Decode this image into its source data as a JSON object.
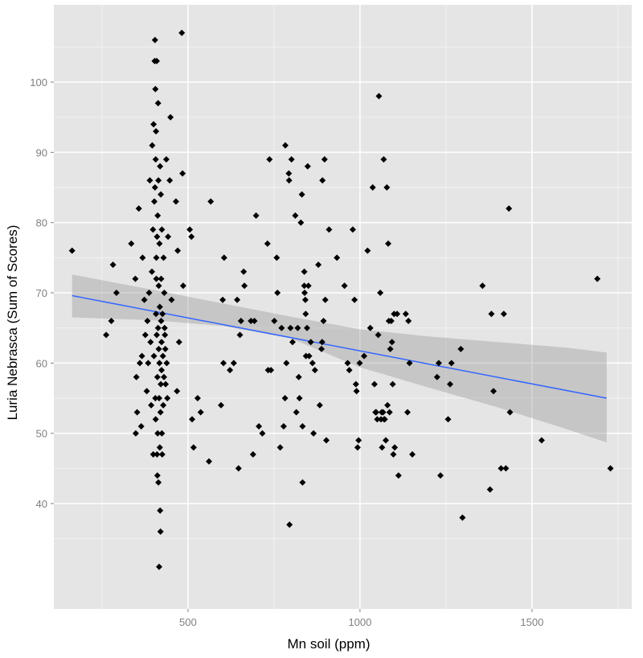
{
  "chart_data": {
    "type": "scatter",
    "title": "",
    "xlabel": "Mn soil (ppm)",
    "ylabel": "Luria Nebrasca (Sum of Scores)",
    "xlim": [
      110,
      1790
    ],
    "ylim": [
      25,
      111
    ],
    "x_ticks": [
      500,
      1000,
      1500
    ],
    "y_ticks": [
      40,
      50,
      60,
      70,
      80,
      90,
      100
    ],
    "x_tick_labels": [
      "500",
      "1000",
      "1500"
    ],
    "y_tick_labels": [
      "40",
      "50",
      "60",
      "70",
      "80",
      "90",
      "100"
    ],
    "grid": true,
    "legend": "none",
    "colors": {
      "panel_bg": "#e5e5e5",
      "grid_major": "#ffffff",
      "grid_minor": "#f2f2f2",
      "points": "#000000",
      "fit_line": "#3366ff",
      "ci_band": "#999999"
    },
    "points": [
      [
        163,
        76
      ],
      [
        262,
        64
      ],
      [
        277,
        66
      ],
      [
        282,
        74
      ],
      [
        292,
        70
      ],
      [
        335,
        77
      ],
      [
        347,
        72
      ],
      [
        352,
        53
      ],
      [
        348,
        50
      ],
      [
        357,
        82
      ],
      [
        350,
        58
      ],
      [
        360,
        60
      ],
      [
        364,
        51
      ],
      [
        368,
        75
      ],
      [
        366,
        61
      ],
      [
        373,
        69
      ],
      [
        376,
        64
      ],
      [
        380,
        56
      ],
      [
        382,
        66
      ],
      [
        384,
        60
      ],
      [
        387,
        70
      ],
      [
        389,
        86
      ],
      [
        391,
        63
      ],
      [
        393,
        54
      ],
      [
        395,
        73
      ],
      [
        396,
        91
      ],
      [
        398,
        79
      ],
      [
        399,
        47
      ],
      [
        400,
        94
      ],
      [
        401,
        61
      ],
      [
        402,
        83
      ],
      [
        403,
        103
      ],
      [
        404,
        106
      ],
      [
        404,
        85
      ],
      [
        405,
        99
      ],
      [
        405,
        55
      ],
      [
        406,
        89
      ],
      [
        406,
        52
      ],
      [
        407,
        67
      ],
      [
        407,
        93
      ],
      [
        408,
        75
      ],
      [
        408,
        72
      ],
      [
        409,
        103
      ],
      [
        409,
        64
      ],
      [
        410,
        78
      ],
      [
        410,
        47
      ],
      [
        411,
        44
      ],
      [
        411,
        58
      ],
      [
        412,
        81
      ],
      [
        412,
        50
      ],
      [
        413,
        97
      ],
      [
        413,
        65
      ],
      [
        414,
        86
      ],
      [
        414,
        43
      ],
      [
        415,
        62
      ],
      [
        415,
        71
      ],
      [
        416,
        55
      ],
      [
        416,
        31
      ],
      [
        417,
        77
      ],
      [
        417,
        60
      ],
      [
        418,
        68
      ],
      [
        418,
        48
      ],
      [
        419,
        88
      ],
      [
        419,
        39
      ],
      [
        420,
        53
      ],
      [
        420,
        36
      ],
      [
        421,
        84
      ],
      [
        421,
        57
      ],
      [
        422,
        72
      ],
      [
        422,
        66
      ],
      [
        423,
        63
      ],
      [
        423,
        59
      ],
      [
        424,
        50
      ],
      [
        424,
        79
      ],
      [
        425,
        47
      ],
      [
        426,
        67
      ],
      [
        427,
        61
      ],
      [
        428,
        54
      ],
      [
        429,
        75
      ],
      [
        430,
        58
      ],
      [
        431,
        70
      ],
      [
        432,
        65
      ],
      [
        433,
        64
      ],
      [
        434,
        62
      ],
      [
        435,
        57
      ],
      [
        437,
        89
      ],
      [
        438,
        60
      ],
      [
        440,
        55
      ],
      [
        442,
        78
      ],
      [
        447,
        86
      ],
      [
        449,
        95
      ],
      [
        452,
        69
      ],
      [
        465,
        83
      ],
      [
        468,
        56
      ],
      [
        470,
        76
      ],
      [
        474,
        63
      ],
      [
        482,
        107
      ],
      [
        484,
        87
      ],
      [
        486,
        71
      ],
      [
        505,
        79
      ],
      [
        510,
        78
      ],
      [
        512,
        52
      ],
      [
        516,
        48
      ],
      [
        528,
        55
      ],
      [
        537,
        53
      ],
      [
        561,
        46
      ],
      [
        566,
        83
      ],
      [
        596,
        54
      ],
      [
        601,
        69
      ],
      [
        605,
        75
      ],
      [
        603,
        60
      ],
      [
        622,
        59
      ],
      [
        633,
        60
      ],
      [
        643,
        69
      ],
      [
        647,
        45
      ],
      [
        651,
        64
      ],
      [
        654,
        66
      ],
      [
        662,
        73
      ],
      [
        664,
        71
      ],
      [
        683,
        66
      ],
      [
        689,
        47
      ],
      [
        693,
        66
      ],
      [
        698,
        81
      ],
      [
        706,
        51
      ],
      [
        716,
        50
      ],
      [
        731,
        77
      ],
      [
        737,
        89
      ],
      [
        733,
        59
      ],
      [
        741,
        59
      ],
      [
        751,
        66
      ],
      [
        758,
        75
      ],
      [
        760,
        70
      ],
      [
        768,
        48
      ],
      [
        772,
        65
      ],
      [
        778,
        51
      ],
      [
        783,
        91
      ],
      [
        782,
        55
      ],
      [
        786,
        60
      ],
      [
        793,
        87
      ],
      [
        794,
        86
      ],
      [
        795,
        37
      ],
      [
        798,
        65
      ],
      [
        801,
        89
      ],
      [
        804,
        63
      ],
      [
        812,
        81
      ],
      [
        815,
        53
      ],
      [
        819,
        65
      ],
      [
        822,
        58
      ],
      [
        824,
        55
      ],
      [
        828,
        80
      ],
      [
        833,
        43
      ],
      [
        831,
        84
      ],
      [
        833,
        51
      ],
      [
        838,
        73
      ],
      [
        838,
        71
      ],
      [
        839,
        70
      ],
      [
        841,
        69
      ],
      [
        842,
        67
      ],
      [
        843,
        61
      ],
      [
        846,
        65
      ],
      [
        848,
        88
      ],
      [
        850,
        71
      ],
      [
        852,
        61
      ],
      [
        857,
        63
      ],
      [
        862,
        60
      ],
      [
        865,
        50
      ],
      [
        869,
        59
      ],
      [
        879,
        74
      ],
      [
        883,
        54
      ],
      [
        888,
        62
      ],
      [
        890,
        63
      ],
      [
        891,
        86
      ],
      [
        894,
        66
      ],
      [
        897,
        89
      ],
      [
        899,
        69
      ],
      [
        902,
        49
      ],
      [
        910,
        79
      ],
      [
        933,
        75
      ],
      [
        955,
        71
      ],
      [
        964,
        60
      ],
      [
        969,
        59
      ],
      [
        979,
        79
      ],
      [
        984,
        69
      ],
      [
        988,
        57
      ],
      [
        990,
        56
      ],
      [
        993,
        48
      ],
      [
        996,
        49
      ],
      [
        999,
        60
      ],
      [
        1012,
        61
      ],
      [
        1022,
        76
      ],
      [
        1030,
        65
      ],
      [
        1037,
        85
      ],
      [
        1042,
        57
      ],
      [
        1045,
        53
      ],
      [
        1047,
        53
      ],
      [
        1050,
        52
      ],
      [
        1053,
        64
      ],
      [
        1055,
        98
      ],
      [
        1059,
        70
      ],
      [
        1061,
        52
      ],
      [
        1063,
        53
      ],
      [
        1064,
        48
      ],
      [
        1067,
        53
      ],
      [
        1069,
        89
      ],
      [
        1070,
        52
      ],
      [
        1072,
        52
      ],
      [
        1075,
        49
      ],
      [
        1078,
        85
      ],
      [
        1080,
        54
      ],
      [
        1082,
        77
      ],
      [
        1084,
        66
      ],
      [
        1086,
        53
      ],
      [
        1088,
        62
      ],
      [
        1091,
        66
      ],
      [
        1093,
        63
      ],
      [
        1095,
        57
      ],
      [
        1097,
        47
      ],
      [
        1099,
        67
      ],
      [
        1101,
        48
      ],
      [
        1108,
        67
      ],
      [
        1112,
        44
      ],
      [
        1133,
        67
      ],
      [
        1138,
        53
      ],
      [
        1141,
        66
      ],
      [
        1144,
        60
      ],
      [
        1152,
        47
      ],
      [
        1224,
        58
      ],
      [
        1229,
        60
      ],
      [
        1234,
        44
      ],
      [
        1256,
        52
      ],
      [
        1262,
        57
      ],
      [
        1266,
        60
      ],
      [
        1293,
        62
      ],
      [
        1298,
        38
      ],
      [
        1356,
        71
      ],
      [
        1378,
        42
      ],
      [
        1382,
        67
      ],
      [
        1388,
        56
      ],
      [
        1410,
        45
      ],
      [
        1418,
        67
      ],
      [
        1424,
        45
      ],
      [
        1433,
        82
      ],
      [
        1436,
        53
      ],
      [
        1528,
        49
      ],
      [
        1690,
        72
      ],
      [
        1728,
        45
      ]
    ],
    "fit_line": {
      "x": [
        163,
        1717
      ],
      "y": [
        69.6,
        55.0
      ]
    },
    "ci_band": {
      "x": [
        163,
        400,
        600,
        800,
        1000,
        1200,
        1400,
        1600,
        1717
      ],
      "upper": [
        72.6,
        70.4,
        68.5,
        66.6,
        64.8,
        63.8,
        63.0,
        62.2,
        61.5
      ],
      "lower": [
        66.5,
        66.1,
        65.3,
        63.5,
        59.4,
        56.5,
        53.7,
        50.6,
        48.7
      ]
    }
  }
}
